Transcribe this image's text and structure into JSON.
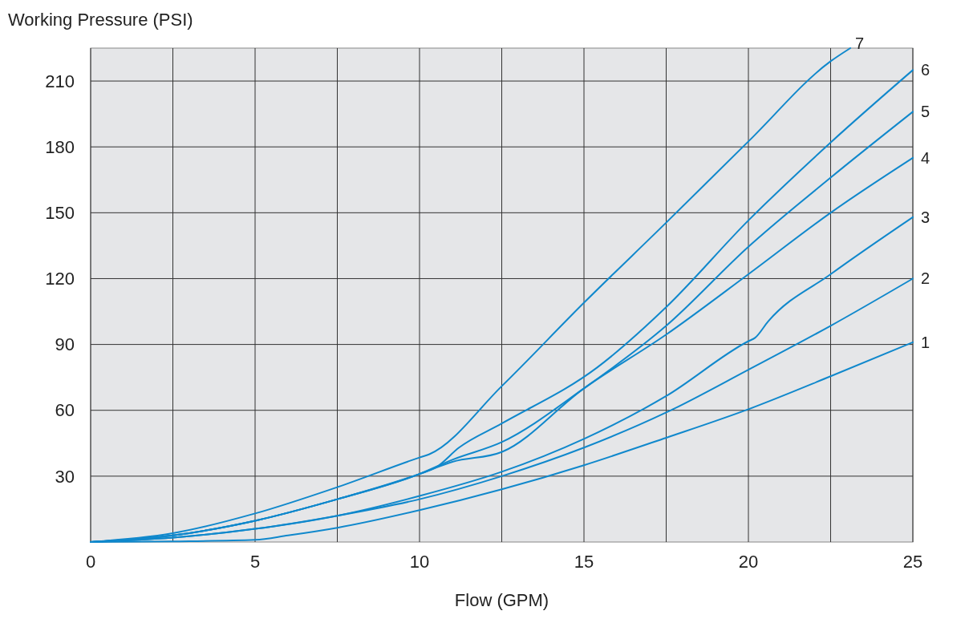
{
  "chart_data": {
    "type": "line",
    "xlabel": "Flow (GPM)",
    "ylabel": "Working Pressure (PSI)",
    "xlim": [
      0,
      25
    ],
    "ylim": [
      0,
      225
    ],
    "xticks": [
      0,
      {
        "value": 2.5,
        "label": null
      },
      5,
      {
        "value": 7.5,
        "label": null
      },
      10,
      {
        "value": 12.5,
        "label": null
      },
      15,
      {
        "value": 17.5,
        "label": null
      },
      20,
      {
        "value": 22.5,
        "label": null
      },
      25
    ],
    "yticks": [
      30,
      60,
      90,
      120,
      150,
      180,
      210
    ],
    "grid": true,
    "marker": "none",
    "line_style": "solid",
    "series": [
      {
        "name": "1",
        "color": "#1088cc",
        "x": [
          0,
          2.5,
          5,
          6,
          7.5,
          10,
          12.5,
          15,
          17.5,
          20,
          22.5,
          25
        ],
        "values": [
          0,
          0.3,
          1,
          3,
          6.5,
          14.5,
          24,
          35,
          47.5,
          60.5,
          75.5,
          91
        ]
      },
      {
        "name": "2",
        "color": "#1088cc",
        "x": [
          0,
          2.5,
          5,
          7.5,
          10,
          12.5,
          15,
          17.5,
          20,
          22.5,
          25
        ],
        "values": [
          0,
          2,
          6,
          12,
          19.5,
          30,
          43,
          59,
          78.5,
          98.5,
          120
        ]
      },
      {
        "name": "3",
        "color": "#1088cc",
        "x": [
          0,
          2.5,
          5,
          7.5,
          10,
          12.5,
          15,
          17.5,
          20,
          20.2,
          20.6,
          22.5,
          25
        ],
        "values": [
          0,
          2,
          6,
          12,
          21,
          32,
          47,
          66.5,
          91.5,
          93,
          100.5,
          122,
          148
        ]
      },
      {
        "name": "4",
        "color": "#1088cc",
        "x": [
          0,
          2.5,
          5,
          7.5,
          10,
          11,
          12.5,
          15,
          17.5,
          20,
          22.5,
          25
        ],
        "values": [
          0,
          3,
          9.7,
          19.5,
          31,
          36.5,
          41,
          70,
          94.5,
          122,
          150,
          175
        ]
      },
      {
        "name": "5",
        "color": "#1088cc",
        "x": [
          0,
          2.5,
          5,
          7.5,
          10,
          11,
          12.5,
          15,
          17.5,
          20,
          22.5,
          25
        ],
        "values": [
          0,
          3,
          9.7,
          19.5,
          31,
          37.5,
          45.5,
          70,
          98.5,
          134.5,
          166,
          196
        ]
      },
      {
        "name": "6",
        "color": "#1088cc",
        "x": [
          0,
          2.5,
          5,
          7.5,
          10,
          10.5,
          11.2,
          12.5,
          15.4,
          17.5,
          20,
          22.5,
          25
        ],
        "values": [
          0,
          3,
          9.7,
          19.5,
          31,
          34,
          43,
          54,
          79.5,
          107,
          146.5,
          182,
          215
        ]
      },
      {
        "name": "7",
        "color": "#1088cc",
        "x": [
          0,
          2.5,
          5,
          7.5,
          10,
          10.3,
          12.5,
          15,
          17.5,
          20,
          22.5,
          23.1
        ],
        "values": [
          0,
          4,
          13,
          25,
          38.5,
          40,
          71,
          109,
          145.5,
          182.5,
          219,
          225
        ]
      }
    ]
  }
}
